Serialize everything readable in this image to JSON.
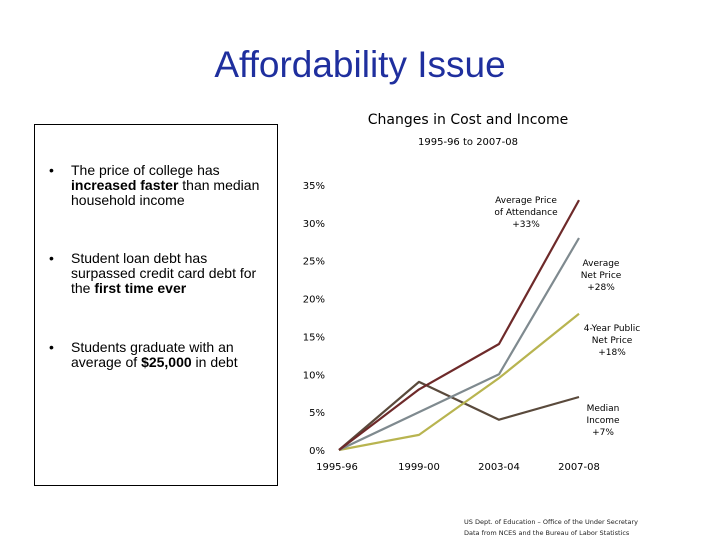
{
  "slide": {
    "title": "Affordability Issue"
  },
  "bullets": [
    {
      "pre": "The price of college has ",
      "bold": "increased faster",
      "post": " than median household income"
    },
    {
      "pre": "Student loan debt has surpassed credit card debt for the ",
      "bold": "first time ever",
      "post": ""
    },
    {
      "pre": "Students graduate with an average of ",
      "bold": "$25,000",
      "post": " in debt"
    }
  ],
  "bullet_glyph": "•",
  "source": {
    "line1": "US Dept. of Education – Office of the Under Secretary",
    "line2": "Data from NCES and the Bureau of Labor Statistics"
  },
  "chart_data": {
    "type": "line",
    "title": "Changes in Cost and Income",
    "subtitle": "1995-96 to 2007-08",
    "categories": [
      "1995-96",
      "1999-00",
      "2003-04",
      "2007-08"
    ],
    "ylim": [
      0,
      35
    ],
    "yticks": [
      0,
      5,
      10,
      15,
      20,
      25,
      30,
      35
    ],
    "ytick_labels": [
      "0%",
      "5%",
      "10%",
      "15%",
      "20%",
      "25%",
      "30%",
      "35%"
    ],
    "series": [
      {
        "name": "Average Price of Attendance",
        "label_lines": [
          "Average Price",
          "of Attendance",
          "+33%"
        ],
        "color": "#6e2a2a",
        "values": [
          0,
          8,
          14,
          33
        ]
      },
      {
        "name": "Average Net Price",
        "label_lines": [
          "Average",
          "Net Price",
          "+28%"
        ],
        "color": "#7f8a8f",
        "values": [
          0,
          5,
          10,
          28
        ]
      },
      {
        "name": "4-Year Public Net Price",
        "label_lines": [
          "4-Year Public",
          "Net Price",
          "+18%"
        ],
        "color": "#b8b450",
        "values": [
          0,
          2,
          9.5,
          18
        ]
      },
      {
        "name": "Median Income",
        "label_lines": [
          "Median",
          "Income",
          "+7%"
        ],
        "color": "#5a4a3c",
        "values": [
          0,
          9,
          4,
          7
        ]
      }
    ]
  }
}
